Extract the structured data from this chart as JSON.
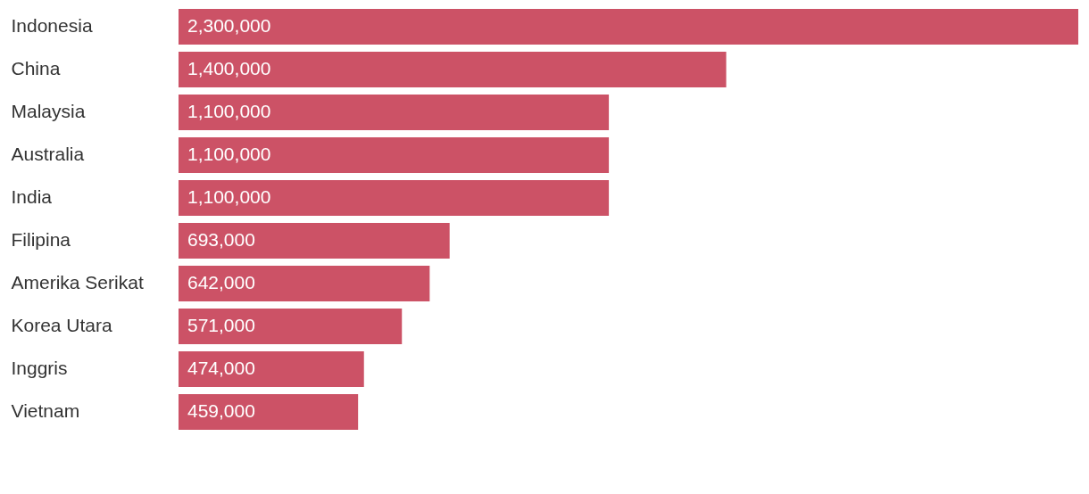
{
  "chart_data": {
    "type": "bar",
    "orientation": "horizontal",
    "categories": [
      "Indonesia",
      "China",
      "Malaysia",
      "Australia",
      "India",
      "Filipina",
      "Amerika Serikat",
      "Korea Utara",
      "Inggris",
      "Vietnam"
    ],
    "values": [
      2300000,
      1400000,
      1100000,
      1100000,
      1100000,
      693000,
      642000,
      571000,
      474000,
      459000
    ],
    "value_labels": [
      "2,300,000",
      "1,400,000",
      "1,100,000",
      "1,100,000",
      "1,100,000",
      "693,000",
      "642,000",
      "571,000",
      "474,000",
      "459,000"
    ],
    "color": "#cc5266"
  }
}
